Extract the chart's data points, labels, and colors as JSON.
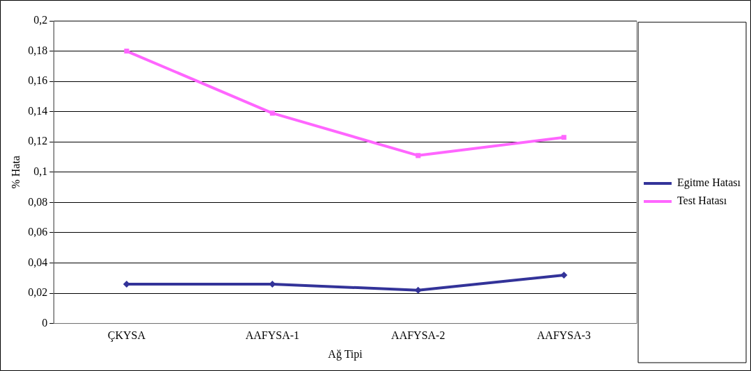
{
  "chart_data": {
    "type": "line",
    "xlabel": "Ağ Tipi",
    "ylabel": "% Hata",
    "categories": [
      "ÇKYSA",
      "AAFYSA-1",
      "AAFYSA-2",
      "AAFYSA-3"
    ],
    "series": [
      {
        "name": "Egitme Hatası",
        "color": "#333399",
        "marker": "diamond",
        "values": [
          0.026,
          0.026,
          0.022,
          0.032
        ]
      },
      {
        "name": "Test Hatası",
        "color": "#ff66ff",
        "marker": "square",
        "values": [
          0.18,
          0.139,
          0.111,
          0.123
        ]
      }
    ],
    "ylim": [
      0,
      0.2
    ],
    "yticks": [
      {
        "value": 0,
        "label": "0"
      },
      {
        "value": 0.02,
        "label": "0,02"
      },
      {
        "value": 0.04,
        "label": "0,04"
      },
      {
        "value": 0.06,
        "label": "0,06"
      },
      {
        "value": 0.08,
        "label": "0,08"
      },
      {
        "value": 0.1,
        "label": "0,1"
      },
      {
        "value": 0.12,
        "label": "0,12"
      },
      {
        "value": 0.14,
        "label": "0,14"
      },
      {
        "value": 0.16,
        "label": "0,16"
      },
      {
        "value": 0.18,
        "label": "0,18"
      },
      {
        "value": 0.2,
        "label": "0,2"
      }
    ],
    "grid": "y",
    "legend": "right",
    "line_style": "solid"
  }
}
